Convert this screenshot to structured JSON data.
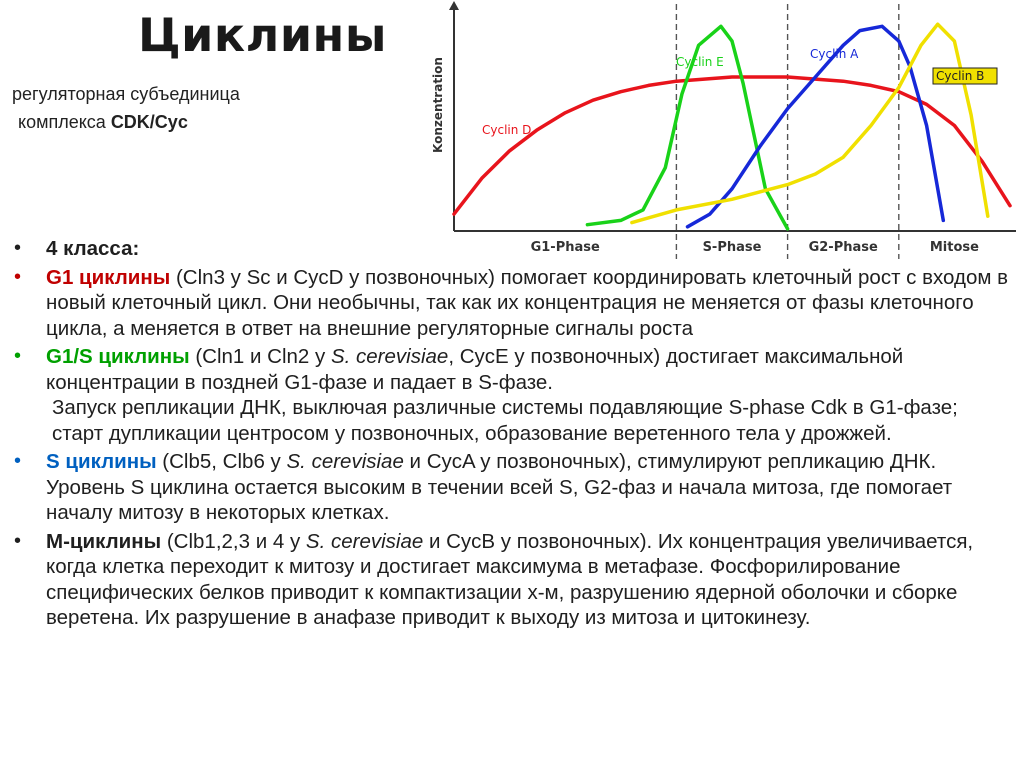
{
  "slide": {
    "title": "Циклины",
    "subtitle_line1": "регуляторная субъединица",
    "subtitle_line2_prefix": "комплекса ",
    "subtitle_line2_bold": "CDK/Cyc"
  },
  "bullets": {
    "b1": {
      "bold": "4 класса:",
      "color": "#1f1f1f"
    },
    "b2": {
      "bold": "G1 циклины",
      "color": "#c00000",
      "text": " (Cln3 у Sc и CycD у позвоночных) помогает координировать клеточный рост с входом в новый клеточный цикл. Они необычны, так как их концентрация не меняется от фазы клеточного цикла, а меняется в ответ на внешние регуляторные сигналы роста"
    },
    "b3": {
      "bold": "G1/S циклины",
      "color": "#00a000",
      "text1": " (Cln1 и Cln2 у ",
      "ital1": "S. cerevisiae",
      "text2": ", CycE у позвоночных) достигает максимальной концентрации в поздней G1-фазе и падает в S-фазе.",
      "text3": "Запуск репликации ДНК, выключая различные системы подавляющие S-phase Cdk в G1-фазе; старт дупликации центросом у позвоночных, образование веретенного тела у дрожжей."
    },
    "b4": {
      "bold": "S циклины",
      "color": "#0060c0",
      "text1": " (Clb5, Clb6 у ",
      "ital1": "S. cerevisiae",
      "text2": " и CycA у позвоночных), стимулируют репликацию ДНК. Уровень S циклина остается высоким в течении всей S, G2-фаз и начала митоза, где помогает началу митозу в некоторых клетках."
    },
    "b5": {
      "bold": "M-циклины",
      "color": "#1f1f1f",
      "text1": " (Clb1,2,3 и 4 у ",
      "ital1": "S. cerevisiae",
      "text2": " и CycB у позвоночных). Их концентрация увеличивается, когда клетка переходит к митозу и достигает максимума в метафазе.  Фосфорилирование специфических белков приводит к компактизации х-м, разрушению ядерной оболочки и сборке веретена. Их разрушение в анафазе приводит к выходу из митоза и цитокинезу."
    }
  },
  "chart_data": {
    "type": "line",
    "ylabel": "Konzentration",
    "phases": [
      "G1-Phase",
      "S-Phase",
      "G2-Phase",
      "Mitose"
    ],
    "phase_boundaries": [
      0.4,
      0.6,
      0.8
    ],
    "series": [
      {
        "name": "Cyclin D",
        "color": "#e8141c",
        "x": [
          0.0,
          0.05,
          0.1,
          0.15,
          0.2,
          0.25,
          0.3,
          0.35,
          0.4,
          0.45,
          0.5,
          0.55,
          0.6,
          0.65,
          0.7,
          0.75,
          0.8,
          0.85,
          0.9,
          0.95,
          1.0
        ],
        "y": [
          0.08,
          0.25,
          0.38,
          0.48,
          0.56,
          0.62,
          0.66,
          0.69,
          0.71,
          0.72,
          0.73,
          0.73,
          0.73,
          0.72,
          0.71,
          0.69,
          0.66,
          0.6,
          0.5,
          0.33,
          0.12
        ]
      },
      {
        "name": "Cyclin E",
        "color": "#19d219",
        "x": [
          0.24,
          0.3,
          0.34,
          0.38,
          0.41,
          0.44,
          0.48,
          0.5,
          0.52,
          0.56,
          0.6
        ],
        "y": [
          0.03,
          0.05,
          0.1,
          0.3,
          0.65,
          0.88,
          0.97,
          0.9,
          0.7,
          0.2,
          0.01
        ]
      },
      {
        "name": "Cyclin A",
        "color": "#1628d8",
        "x": [
          0.42,
          0.46,
          0.5,
          0.55,
          0.6,
          0.65,
          0.7,
          0.73,
          0.77,
          0.8,
          0.82,
          0.85,
          0.88
        ],
        "y": [
          0.02,
          0.08,
          0.2,
          0.4,
          0.58,
          0.73,
          0.88,
          0.95,
          0.97,
          0.9,
          0.78,
          0.5,
          0.05
        ]
      },
      {
        "name": "Cyclin B",
        "color": "#f0e000",
        "x": [
          0.32,
          0.4,
          0.5,
          0.6,
          0.65,
          0.7,
          0.75,
          0.8,
          0.84,
          0.87,
          0.9,
          0.93,
          0.96
        ],
        "y": [
          0.04,
          0.1,
          0.15,
          0.22,
          0.27,
          0.35,
          0.5,
          0.68,
          0.88,
          0.98,
          0.9,
          0.55,
          0.07
        ]
      }
    ]
  }
}
